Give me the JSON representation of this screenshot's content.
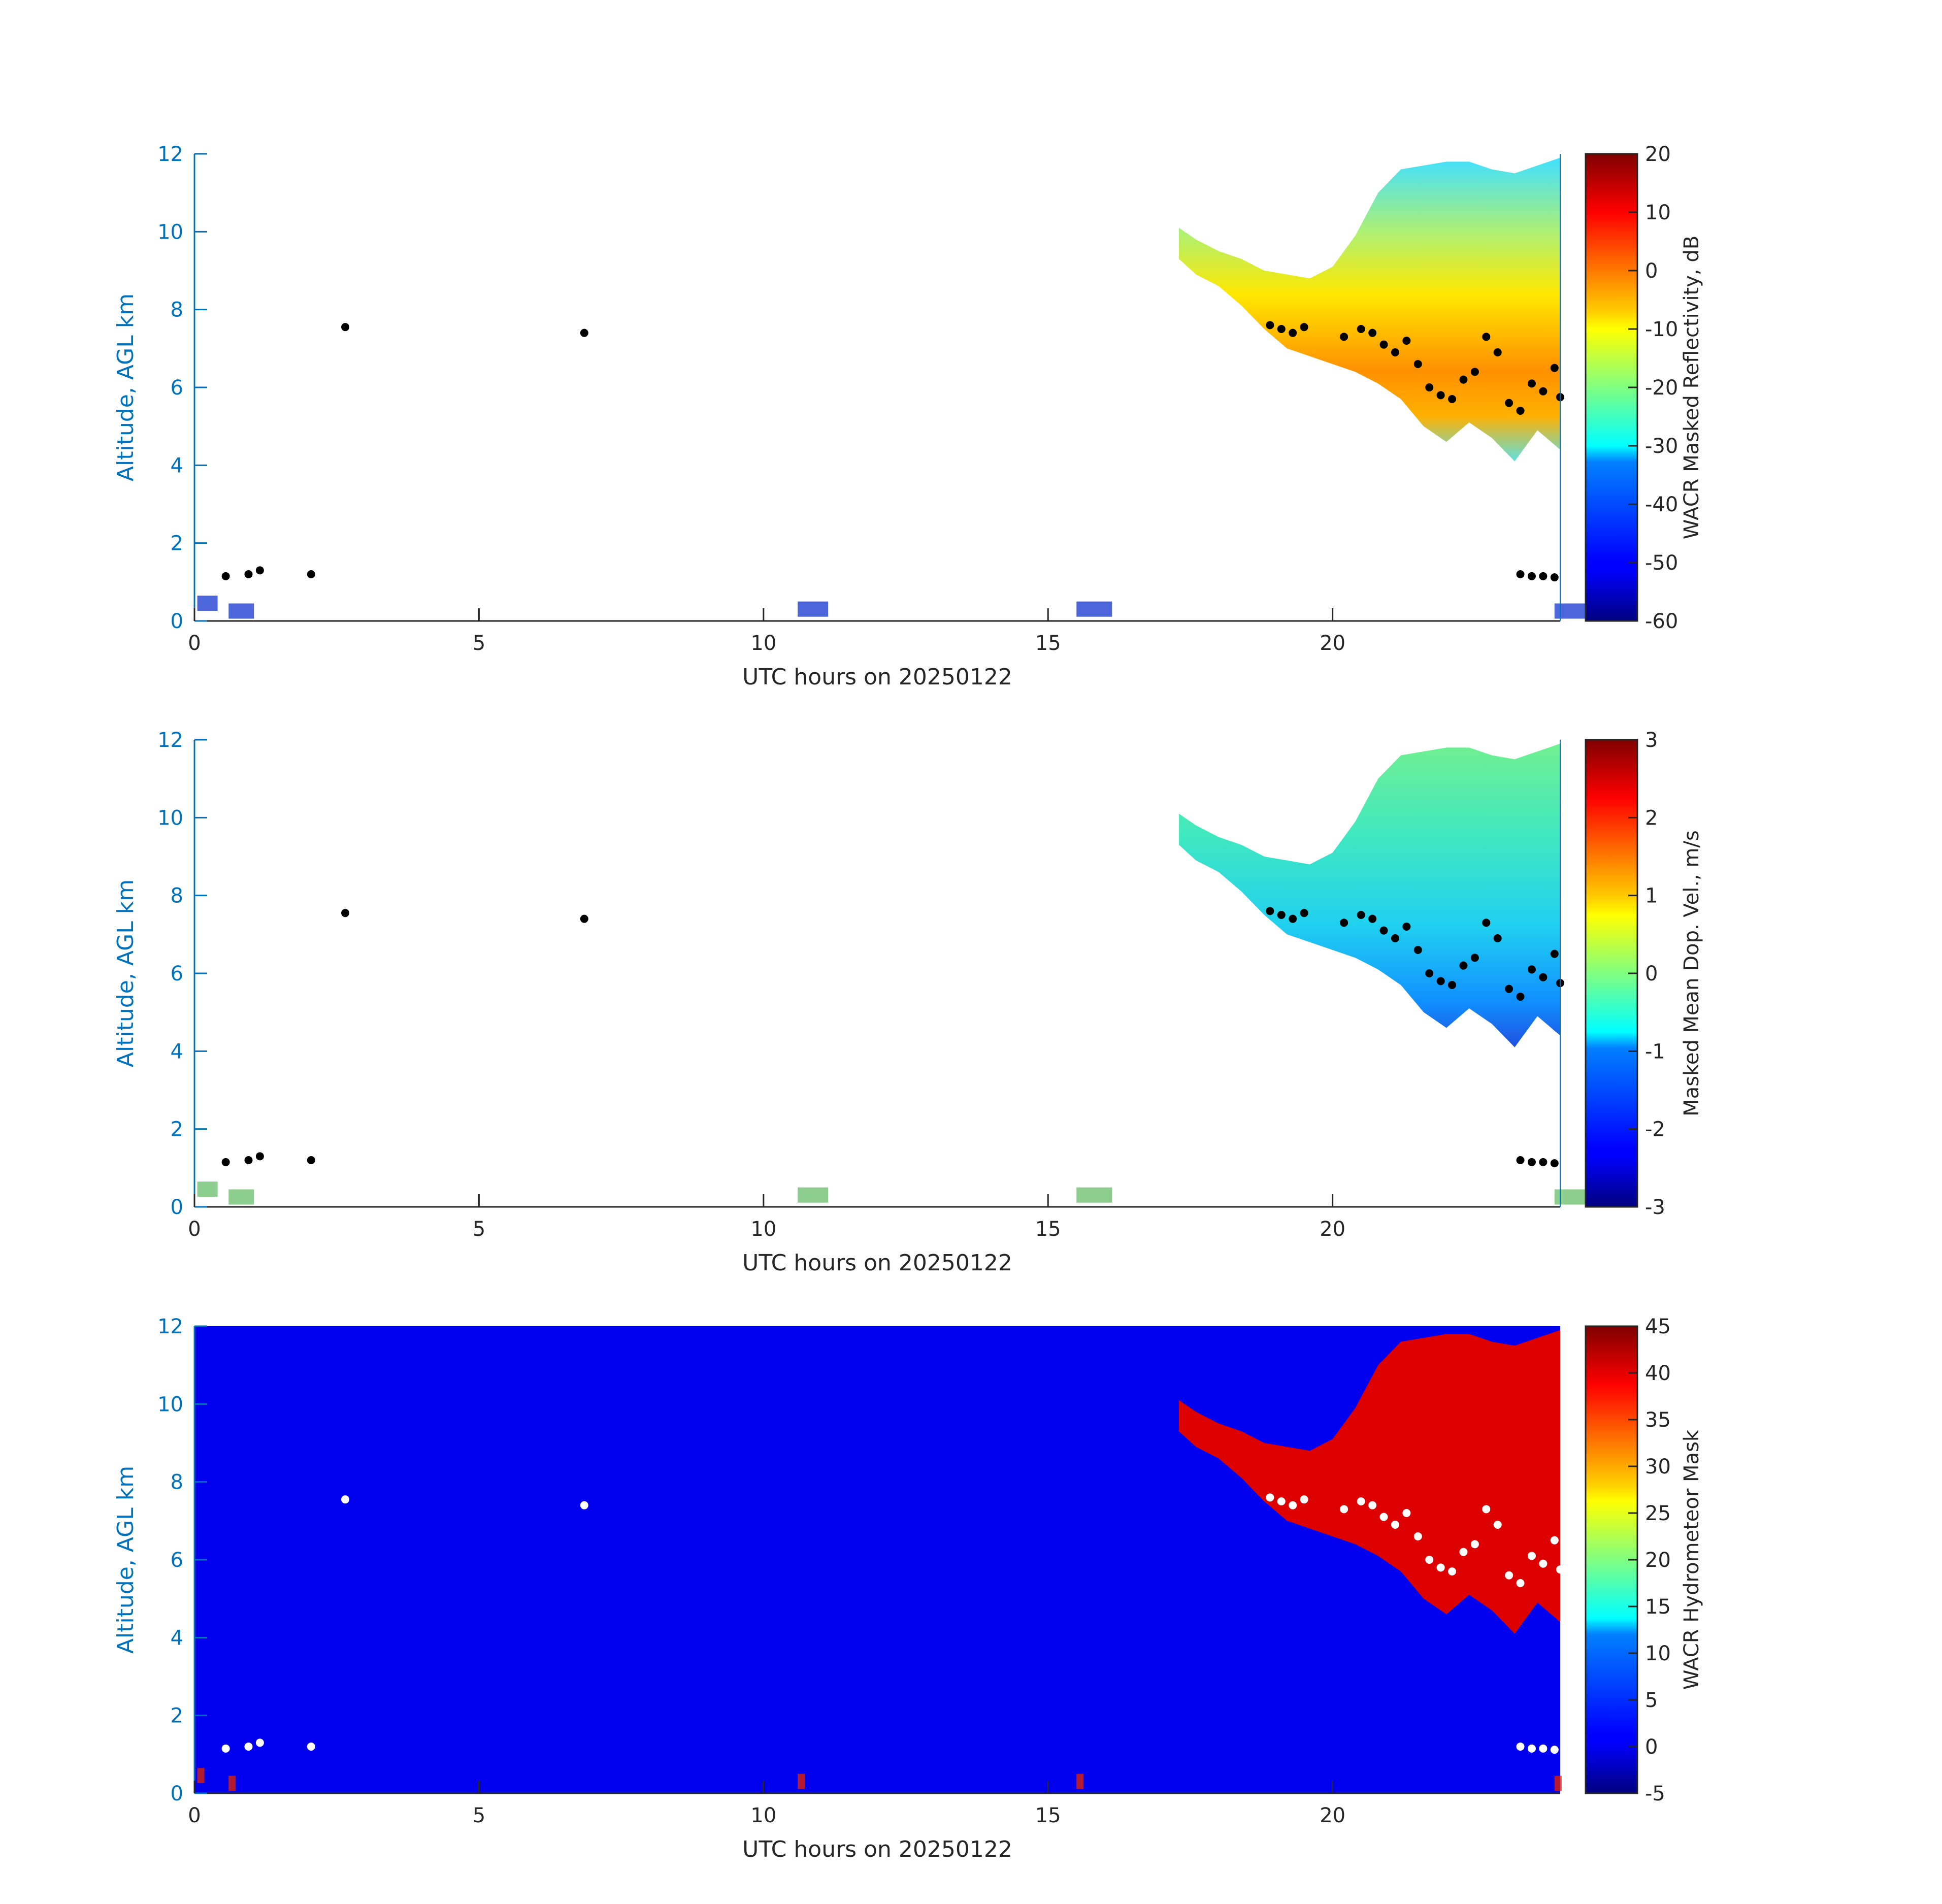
{
  "chart_data": [
    {
      "type": "heatmap",
      "xlabel": "UTC hours on 20250122",
      "ylabel": "Altitude, AGL km",
      "xlim": [
        0,
        24
      ],
      "ylim": [
        0,
        12
      ],
      "xticks": [
        0,
        5,
        10,
        15,
        20
      ],
      "yticks": [
        0,
        2,
        4,
        6,
        8,
        10,
        12
      ],
      "colorbar": {
        "label": "WACR Masked Reflectivity, dB",
        "min": -60,
        "max": 20,
        "ticks": [
          20,
          10,
          0,
          -10,
          -20,
          -30,
          -40,
          -50,
          -60
        ],
        "colormap": "jet"
      },
      "background": "#ffffff",
      "grid": false
    },
    {
      "type": "heatmap",
      "xlabel": "UTC hours on 20250122",
      "ylabel": "Altitude, AGL km",
      "xlim": [
        0,
        24
      ],
      "ylim": [
        0,
        12
      ],
      "xticks": [
        0,
        5,
        10,
        15,
        20
      ],
      "yticks": [
        0,
        2,
        4,
        6,
        8,
        10,
        12
      ],
      "colorbar": {
        "label": "Masked Mean Dop. Vel., m/s",
        "min": -3,
        "max": 3,
        "ticks": [
          3,
          2,
          1,
          0,
          -1,
          -2,
          -3
        ],
        "colormap": "jet"
      },
      "background": "#ffffff",
      "grid": false
    },
    {
      "type": "heatmap",
      "xlabel": "UTC hours on 20250122",
      "ylabel": "Altitude, AGL km",
      "xlim": [
        0,
        24
      ],
      "ylim": [
        0,
        12
      ],
      "xticks": [
        0,
        5,
        10,
        15,
        20
      ],
      "yticks": [
        0,
        2,
        4,
        6,
        8,
        10,
        12
      ],
      "colorbar": {
        "label": "WACR Hydrometeor Mask",
        "min": -5,
        "max": 45,
        "ticks": [
          45,
          40,
          35,
          30,
          25,
          20,
          15,
          10,
          5,
          0,
          -5
        ],
        "colormap": "jet"
      },
      "background": "#0000ee",
      "grid": false
    }
  ],
  "cloud_envelope": {
    "x": [
      17.3,
      17.6,
      18.0,
      18.4,
      18.8,
      19.2,
      19.6,
      20.0,
      20.4,
      20.8,
      21.2,
      21.6,
      22.0,
      22.4,
      22.8,
      23.2,
      23.6,
      24.0
    ],
    "top": [
      10.1,
      9.8,
      9.5,
      9.3,
      9.0,
      8.9,
      8.8,
      9.1,
      9.9,
      11.0,
      11.6,
      11.7,
      11.8,
      11.8,
      11.6,
      11.5,
      11.7,
      11.9
    ],
    "base": [
      9.3,
      8.9,
      8.6,
      8.1,
      7.5,
      7.0,
      6.8,
      6.6,
      6.4,
      6.1,
      5.7,
      5.0,
      4.6,
      5.1,
      4.7,
      4.1,
      4.9,
      4.4
    ]
  },
  "cloud_base_markers": {
    "x": [
      2.65,
      6.85,
      18.9,
      19.1,
      19.3,
      19.5,
      20.2,
      20.5,
      20.7,
      20.9,
      21.1,
      21.3,
      21.5,
      21.7,
      21.9,
      22.1,
      22.3,
      22.5,
      22.7,
      22.9,
      23.1,
      23.3,
      23.5,
      23.7,
      23.9,
      24.0,
      0.55,
      0.95,
      1.15,
      2.05,
      23.3,
      23.5,
      23.7,
      23.9
    ],
    "y": [
      7.55,
      7.4,
      7.6,
      7.5,
      7.4,
      7.55,
      7.3,
      7.5,
      7.4,
      7.1,
      6.9,
      7.2,
      6.6,
      6.0,
      5.8,
      5.7,
      6.2,
      6.4,
      7.3,
      6.9,
      5.6,
      5.4,
      6.1,
      5.9,
      6.5,
      5.75,
      1.15,
      1.2,
      1.3,
      1.2,
      1.2,
      1.15,
      1.15,
      1.12
    ]
  }
}
